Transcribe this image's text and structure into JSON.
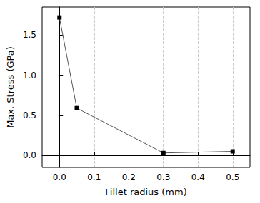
{
  "chart_data": {
    "type": "line",
    "x_label": "Fillet radius (mm)",
    "y_label": "Max. Stress (GPa)",
    "x": [
      0,
      0.05,
      0.3,
      0.5
    ],
    "values": [
      1.72,
      0.59,
      0.03,
      0.05
    ],
    "color": "#000000",
    "marker": "square",
    "xlim": [
      -0.05,
      0.55
    ],
    "xticks": [
      {
        "value": 0,
        "label": "0.0"
      },
      0.1,
      0.2,
      0.3,
      0.4,
      0.5
    ],
    "ylim": [
      -0.15,
      1.85
    ],
    "yticks": [
      {
        "value": 0,
        "label": "0.0"
      },
      0.5,
      {
        "value": 1,
        "label": "1.0"
      },
      1.5
    ],
    "grid": true
  }
}
